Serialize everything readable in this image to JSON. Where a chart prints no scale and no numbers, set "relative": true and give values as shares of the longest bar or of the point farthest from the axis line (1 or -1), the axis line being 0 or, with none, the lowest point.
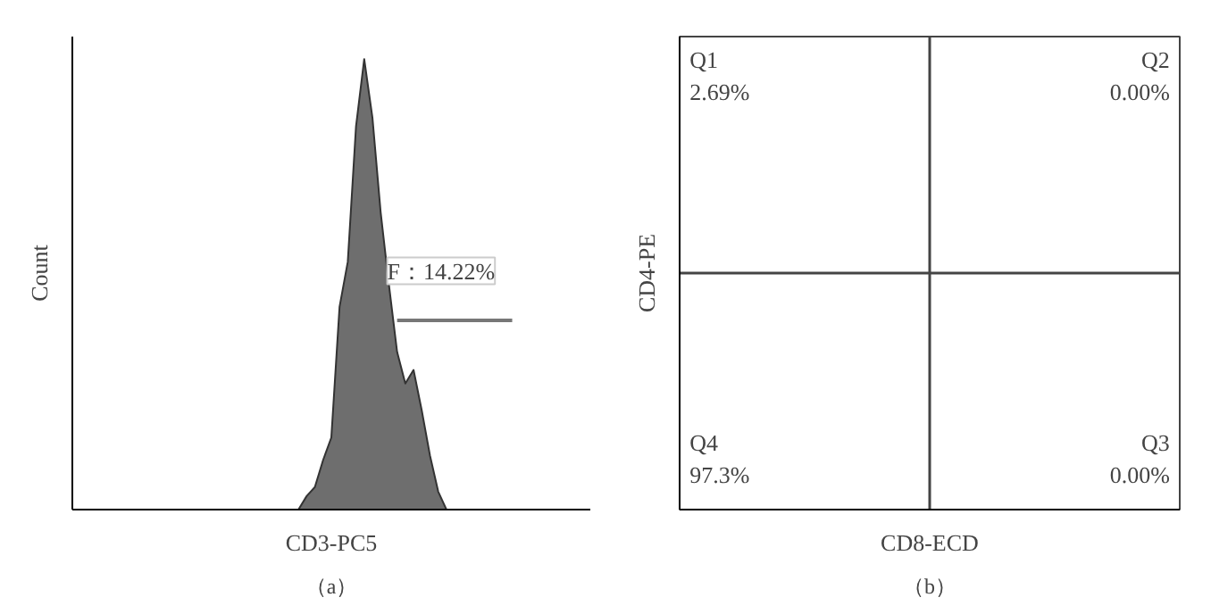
{
  "chart_data": [
    {
      "type": "area",
      "relative": true,
      "title": "（a）",
      "xlabel": "CD3-PC5",
      "ylabel": "Count",
      "tick_labels": false,
      "grid": false,
      "categories": [
        null,
        null,
        null,
        null,
        null,
        null,
        null,
        null,
        null,
        null,
        null,
        null,
        null,
        null,
        null,
        null,
        null,
        null,
        null,
        null,
        null,
        null,
        null,
        null,
        null,
        null,
        null,
        null,
        null,
        null,
        null,
        null,
        null,
        null,
        null,
        null,
        null,
        null,
        null,
        null,
        null,
        null,
        null,
        null,
        null,
        null,
        null,
        null,
        null,
        null,
        null,
        null,
        null,
        null,
        null,
        null,
        null,
        null,
        null,
        null,
        null,
        null,
        null
      ],
      "series": [
        {
          "type": "area",
          "color": "#6e6e6e",
          "values": [
            0,
            0,
            0,
            0,
            0,
            0,
            0,
            0,
            0,
            0,
            0,
            0,
            0,
            0,
            0,
            0,
            0,
            0,
            0,
            0,
            0,
            0,
            0,
            0,
            0,
            0,
            0,
            0,
            0.03,
            0.05,
            0.11,
            0.16,
            0.45,
            0.55,
            0.85,
            1.0,
            0.87,
            0.66,
            0.5,
            0.35,
            0.28,
            0.31,
            0.22,
            0.12,
            0.04,
            0,
            0,
            0,
            0,
            0,
            0,
            0,
            0,
            0,
            0,
            0,
            0,
            0,
            0,
            0,
            0,
            0,
            0
          ]
        },
        {
          "type": "line",
          "color": "#777777",
          "values": [
            null,
            null,
            null,
            null,
            null,
            null,
            null,
            null,
            null,
            null,
            null,
            null,
            null,
            null,
            null,
            null,
            null,
            null,
            null,
            null,
            null,
            null,
            null,
            null,
            null,
            null,
            null,
            null,
            null,
            null,
            null,
            null,
            null,
            null,
            null,
            null,
            null,
            null,
            null,
            0.42,
            0.42,
            0.42,
            0.42,
            0.42,
            0.42,
            0.42,
            0.42,
            0.42,
            0.42,
            0.42,
            0.42,
            0.42,
            0.42,
            0.42,
            null,
            null,
            null,
            null,
            null,
            null,
            null,
            null,
            null
          ]
        }
      ],
      "annotations": [
        "F：14.22%"
      ]
    },
    {
      "type": "other",
      "title": "（b）",
      "xlabel": "CD8-ECD",
      "ylabel": "CD4-PE",
      "annotations": [
        "Q1\n2.69%",
        "Q2\n0.00%",
        "Q4\n97.3%",
        "Q3\n0.00%"
      ]
    }
  ]
}
